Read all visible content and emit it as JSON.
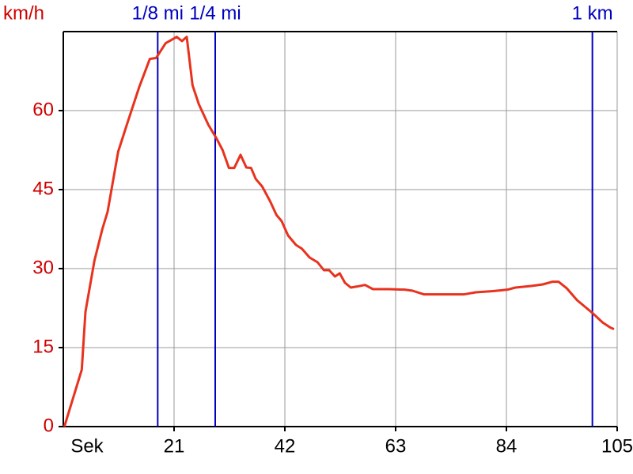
{
  "chart_data": {
    "type": "line",
    "ylabel": "km/h",
    "xlabel": "Sek",
    "xlim": [
      0,
      105
    ],
    "ylim": [
      0,
      75
    ],
    "xticks": [
      21,
      42,
      63,
      84,
      105
    ],
    "yticks": [
      0,
      15,
      30,
      45,
      60
    ],
    "grid": true,
    "x": [
      0.2,
      3.5,
      4.2,
      5.9,
      7.4,
      8.4,
      10.4,
      12.2,
      14.4,
      16.4,
      17.6,
      19.4,
      21.5,
      22.5,
      23.4,
      24.5,
      25.7,
      27.5,
      29.0,
      30.2,
      31.4,
      32.4,
      33.6,
      34.7,
      35.6,
      36.5,
      37.7,
      39.2,
      40.4,
      41.4,
      42.6,
      44.1,
      45.2,
      46.7,
      48.2,
      49.4,
      50.4,
      51.5,
      52.4,
      53.4,
      54.5,
      55.7,
      57.2,
      58.7,
      61.7,
      64.7,
      66.2,
      68.4,
      72.2,
      75.9,
      78.2,
      81.2,
      84.2,
      85.7,
      88.7,
      90.9,
      92.7,
      93.9,
      95.4,
      97.4,
      99.2,
      100.4,
      102.2,
      103.7,
      104.4
    ],
    "series": [
      {
        "color": "#e8321e",
        "values": [
          0,
          10.8,
          21.8,
          31.5,
          37.5,
          40.8,
          52.2,
          57.8,
          64.5,
          69.8,
          70.0,
          72.8,
          74.0,
          73.2,
          74.0,
          64.8,
          61.2,
          57.3,
          54.8,
          52.5,
          49.1,
          49.1,
          51.6,
          49.2,
          49.1,
          47.0,
          45.6,
          42.8,
          40.2,
          39.0,
          36.3,
          34.5,
          33.8,
          32.1,
          31.2,
          29.7,
          29.7,
          28.5,
          29.1,
          27.3,
          26.4,
          26.6,
          26.9,
          26.1,
          26.1,
          26.0,
          25.8,
          25.1,
          25.1,
          25.1,
          25.5,
          25.7,
          26.0,
          26.4,
          26.7,
          27.0,
          27.5,
          27.5,
          26.3,
          24.0,
          22.5,
          21.5,
          19.8,
          18.8,
          18.5
        ]
      }
    ],
    "tick_color": "#d00000",
    "markers": [
      {
        "label": "1/8 mi",
        "x": 17.9
      },
      {
        "label": "1/4 mi",
        "x": 28.8
      },
      {
        "label": "1 km",
        "x": 100.3
      }
    ],
    "marker_color": "#0000c0"
  }
}
